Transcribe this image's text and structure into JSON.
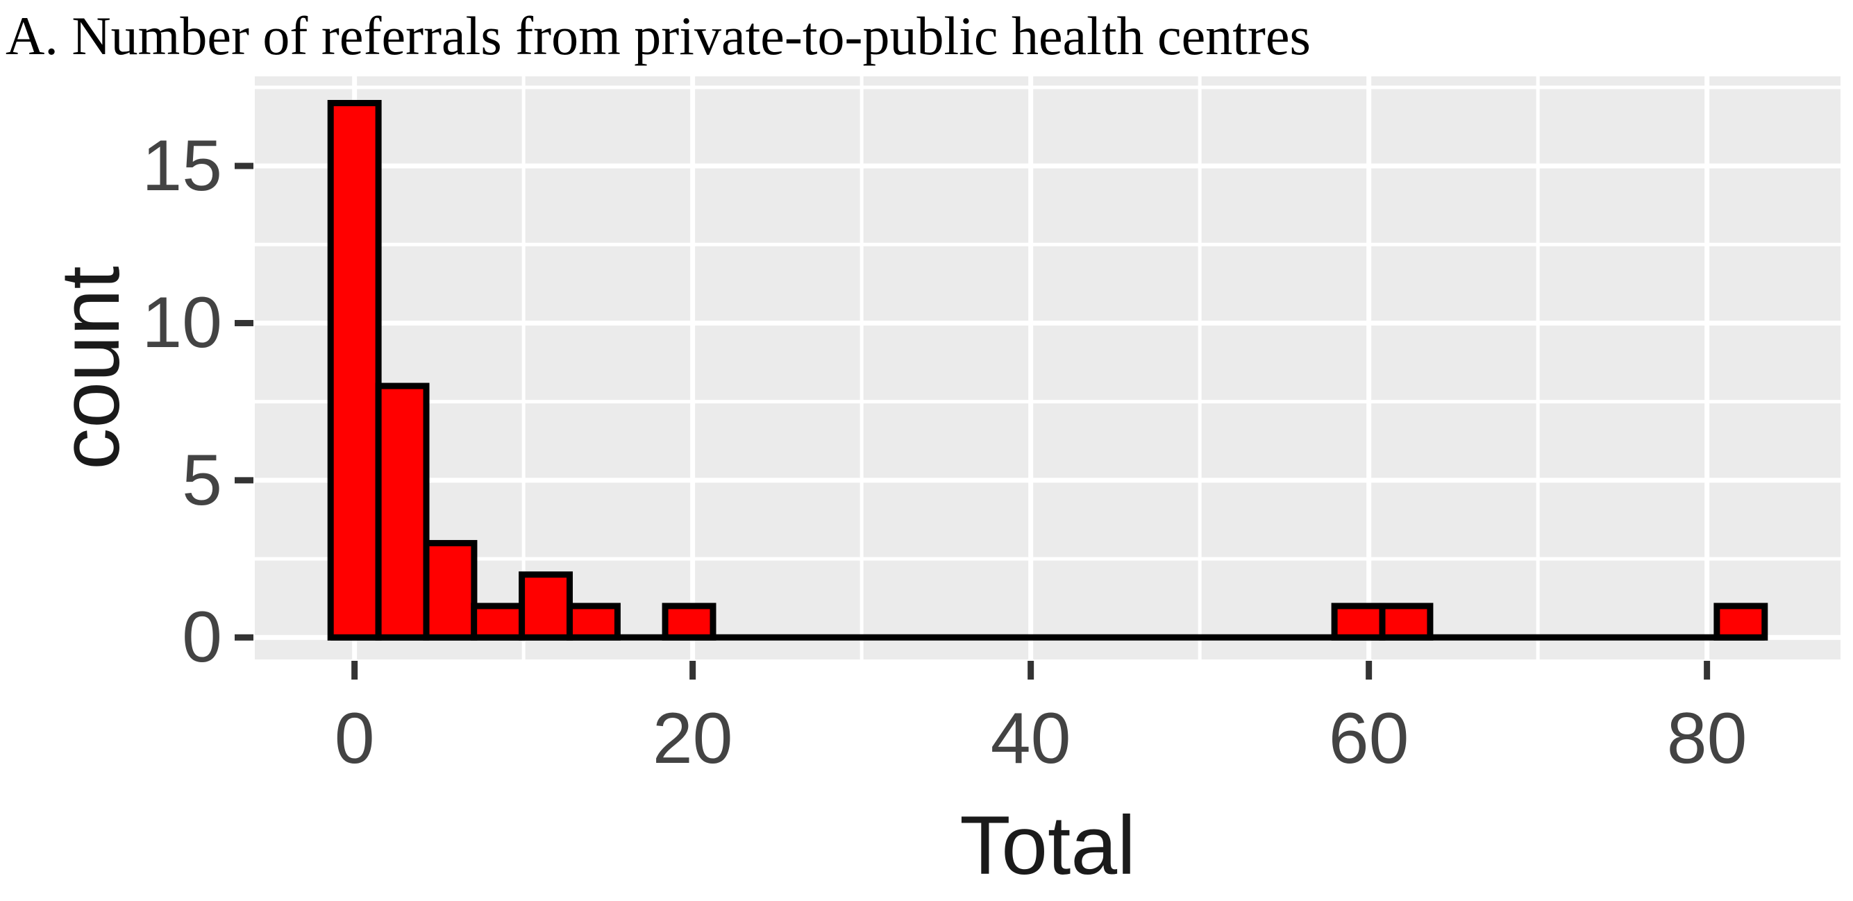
{
  "figure": {
    "title": "A. Number of referrals from private-to-public health centres"
  },
  "chart_data": {
    "type": "histogram",
    "title": "A. Number of referrals from private-to-public health centres",
    "xlabel": "Total",
    "ylabel": "count",
    "x_ticks": [
      0,
      20,
      40,
      60,
      80
    ],
    "y_ticks": [
      0,
      5,
      10,
      15
    ],
    "x_minor_gridlines": [
      10,
      30,
      50,
      70
    ],
    "y_minor_gridlines": [
      2.5,
      7.5,
      12.5,
      17.5
    ],
    "xlim": [
      -5.9,
      87.9
    ],
    "ylim": [
      -0.7,
      17.85
    ],
    "bin_width": 2.83,
    "bins": [
      {
        "center": 0,
        "count": 17
      },
      {
        "center": 2.83,
        "count": 8
      },
      {
        "center": 5.66,
        "count": 3
      },
      {
        "center": 8.48,
        "count": 1
      },
      {
        "center": 11.31,
        "count": 2
      },
      {
        "center": 14.14,
        "count": 1
      },
      {
        "center": 19.79,
        "count": 1
      },
      {
        "center": 59.38,
        "count": 1
      },
      {
        "center": 62.21,
        "count": 1
      },
      {
        "center": 82.0,
        "count": 1
      }
    ],
    "total_observations": 36,
    "legend_position": "none",
    "grid_on": true,
    "colors": {
      "bar_fill": "#FF0000",
      "bar_stroke": "#000000",
      "panel_bg": "#EBEBEB",
      "grid": "#FFFFFF",
      "tick_mark": "#333333",
      "tick_label": "#434343",
      "axis_title": "#1A1A1A",
      "title": "#000000",
      "zero_line": "#000000"
    }
  }
}
